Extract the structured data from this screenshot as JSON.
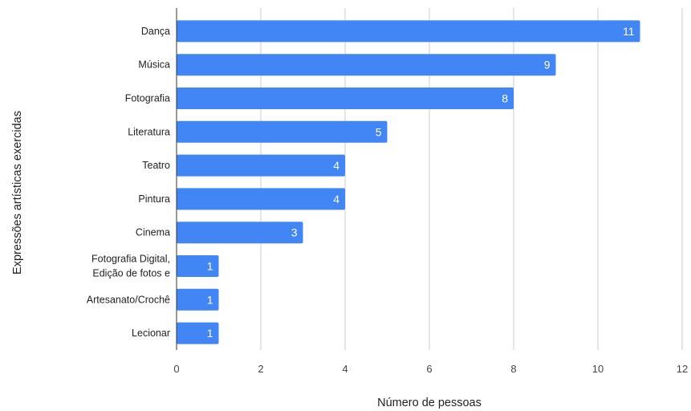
{
  "chart_data": {
    "type": "bar",
    "orientation": "horizontal",
    "categories": [
      [
        "Dança"
      ],
      [
        "Música"
      ],
      [
        "Fotografia"
      ],
      [
        "Literatura"
      ],
      [
        "Teatro"
      ],
      [
        "Pintura"
      ],
      [
        "Cinema"
      ],
      [
        "Fotografia Digital,",
        "Edição de fotos e"
      ],
      [
        "Artesanato/Crochê"
      ],
      [
        "Lecionar"
      ]
    ],
    "values": [
      11,
      9,
      8,
      5,
      4,
      4,
      3,
      1,
      1,
      1
    ],
    "xlabel": "Número de pessoas",
    "ylabel": "Expressões artísticas exercidas",
    "xlim": [
      0,
      12
    ],
    "xticks": [
      0,
      2,
      4,
      6,
      8,
      10,
      12
    ],
    "grid": "vertical",
    "bar_color": "#4285f4",
    "data_labels": true
  }
}
